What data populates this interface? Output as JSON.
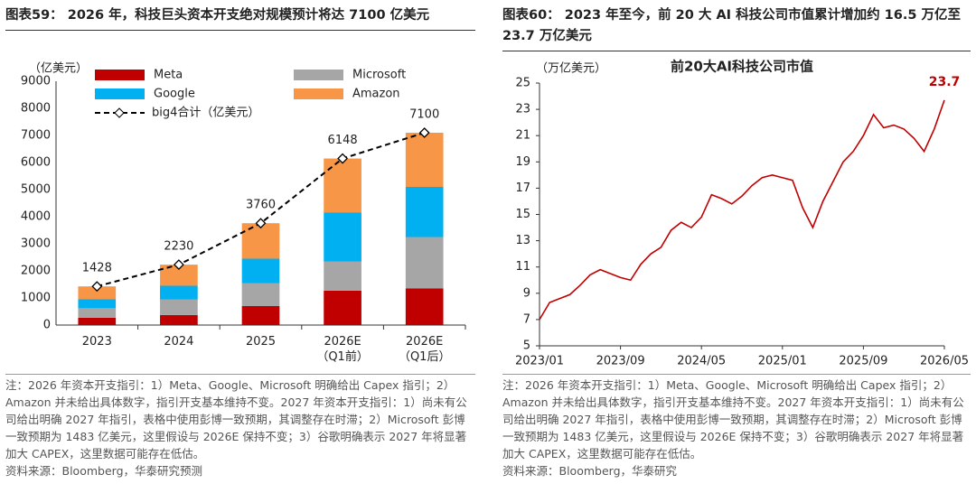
{
  "chart_data": [
    {
      "type": "bar",
      "caption": "图表59： 2026 年，科技巨头资本开支绝对规模预计将达 7100 亿美元",
      "ylabel": "（亿美元）",
      "categories": [
        "2023",
        "2024",
        "2025",
        "2026E\n（Q1前）",
        "2026E\n（Q1后）"
      ],
      "series": [
        {
          "name": "Meta",
          "color": "#c00000",
          "values": [
            270,
            370,
            700,
            1270,
            1350
          ]
        },
        {
          "name": "Microsoft",
          "color": "#a6a6a6",
          "values": [
            350,
            580,
            850,
            1080,
            1900
          ]
        },
        {
          "name": "Google",
          "color": "#00b0f0",
          "values": [
            330,
            500,
            900,
            1800,
            1850
          ]
        },
        {
          "name": "Amazon",
          "color": "#f79646",
          "values": [
            478,
            780,
            1310,
            1998,
            2000
          ]
        }
      ],
      "line": {
        "name": "big4合计（亿美元）",
        "color": "#000000",
        "values": [
          1428,
          2230,
          3760,
          6148,
          7100
        ]
      },
      "ylim": [
        0,
        9000
      ],
      "yticks": [
        0,
        1000,
        2000,
        3000,
        4000,
        5000,
        6000,
        7000,
        8000,
        9000
      ],
      "grid": false,
      "note": "注：2026 年资本开支指引：1）Meta、Google、Microsoft 明确给出 Capex 指引；2）Amazon 并未给出具体数字，指引开支基本维持不变。2027 年资本开支指引：1）尚未有公司给出明确 2027 年指引，表格中使用彭博一致预期，其调整存在时滞；2）Microsoft 彭博一致预期为 1483 亿美元，这里假设与 2026E 保持不变；3）谷歌明确表示 2027 年将显著加大 CAPEX，这里数据可能存在低估。",
      "source": "资料来源：Bloomberg，华泰研究预测"
    },
    {
      "type": "line",
      "caption": "图表60： 2023 年至今，前 20 大 AI 科技公司市值累计增加约 16.5 万亿至 23.7 万亿美元",
      "title": "前20大AI科技公司市值",
      "ylabel": "（万亿美元）",
      "x": [
        "2023/01",
        "2023/02",
        "2023/03",
        "2023/04",
        "2023/05",
        "2023/06",
        "2023/07",
        "2023/08",
        "2023/09",
        "2023/10",
        "2023/11",
        "2023/12",
        "2024/01",
        "2024/02",
        "2024/03",
        "2024/04",
        "2024/05",
        "2024/06",
        "2024/07",
        "2024/08",
        "2024/09",
        "2024/10",
        "2024/11",
        "2024/12",
        "2025/01",
        "2025/02",
        "2025/03",
        "2025/04",
        "2025/05",
        "2025/06",
        "2025/07",
        "2025/08",
        "2025/09",
        "2025/10",
        "2025/11",
        "2025/12",
        "2026/01",
        "2026/02",
        "2026/03",
        "2026/04",
        "2026/05"
      ],
      "series": [
        {
          "name": "前20大AI科技公司市值",
          "color": "#c00000",
          "values": [
            7.0,
            8.3,
            8.6,
            8.9,
            9.6,
            10.4,
            10.8,
            10.5,
            10.2,
            10.0,
            11.2,
            12.0,
            12.5,
            13.8,
            14.4,
            14.0,
            14.8,
            16.5,
            16.2,
            15.8,
            16.4,
            17.2,
            17.8,
            18.0,
            17.8,
            17.6,
            15.5,
            14.0,
            16.0,
            17.5,
            19.0,
            19.8,
            21.0,
            22.6,
            21.6,
            21.8,
            21.5,
            20.8,
            19.8,
            21.5,
            23.7
          ]
        }
      ],
      "xlim": [
        "2023/01",
        "2026/05"
      ],
      "xticks": [
        "2023/01",
        "2023/09",
        "2024/05",
        "2025/01",
        "2025/09",
        "2026/05"
      ],
      "ylim": [
        5,
        25
      ],
      "yticks": [
        5,
        7,
        9,
        11,
        13,
        15,
        17,
        19,
        21,
        23,
        25
      ],
      "grid": false,
      "note": "注：2026 年资本开支指引：1）Meta、Google、Microsoft 明确给出 Capex 指引；2）Amazon 并未给出具体数字，指引开支基本维持不变。2027 年资本开支指引：1）尚未有公司给出明确 2027 年指引，表格中使用彭博一致预期，其调整存在时滞；2）Microsoft 彭博一致预期为 1483 亿美元，这里假设与 2026E 保持不变；3）谷歌明确表示 2027 年将显著加大 CAPEX，这里数据可能存在低估。",
      "source": "资料来源：Bloomberg，华泰研究"
    }
  ]
}
